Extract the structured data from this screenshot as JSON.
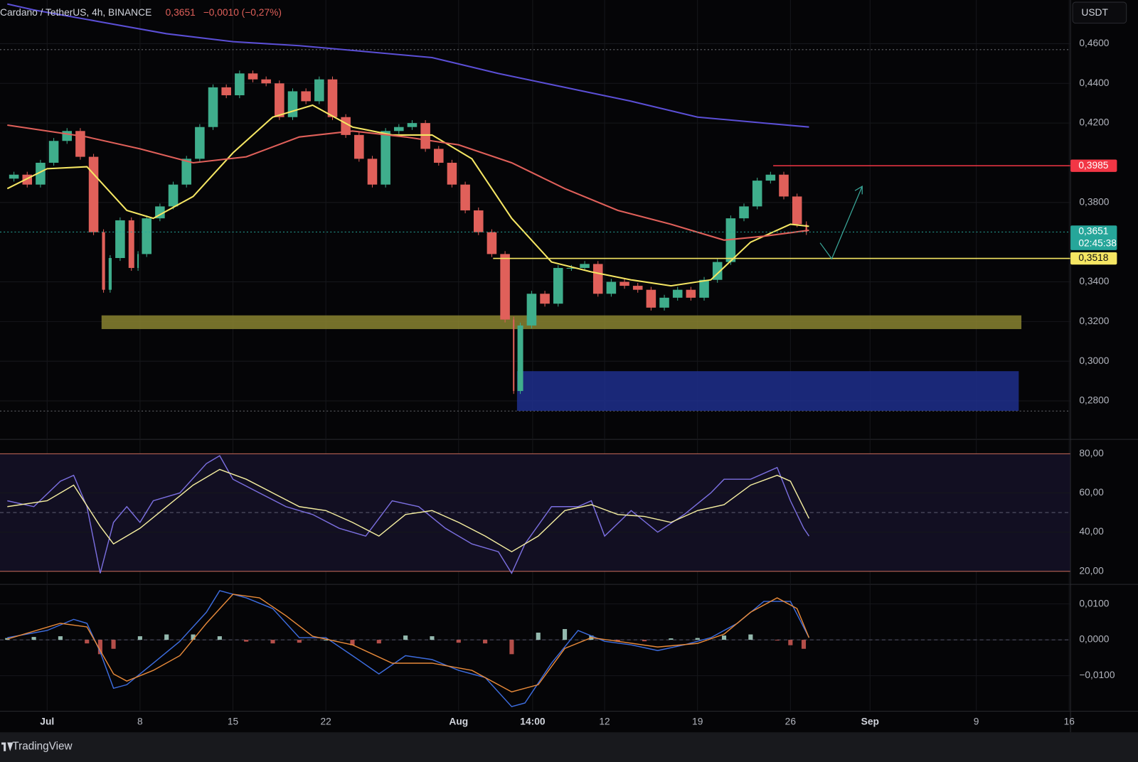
{
  "header": {
    "symbol": "Cardano / TetherUS, 4h, BINANCE",
    "price": "0,3651",
    "change": "−0,0010 (−0,27%)"
  },
  "currency_button": "USDT",
  "brand": "TradingView",
  "chart_data": [
    {
      "type": "candlestick",
      "xlim": [
        -2.55,
        78.1
      ],
      "xticks": [
        {
          "value": 1,
          "label": "Jul"
        },
        8,
        15,
        22,
        {
          "value": 32,
          "label": "Aug"
        },
        {
          "value": 37.58,
          "label": "14:00"
        },
        {
          "value": 43,
          "label": "12"
        },
        {
          "value": 50,
          "label": "19"
        },
        {
          "value": 57,
          "label": "26"
        },
        {
          "value": 63,
          "label": "Sep"
        },
        {
          "value": 71,
          "label": "9"
        },
        {
          "value": 78,
          "label": "16"
        }
      ],
      "ylim": [
        0.261,
        0.482
      ],
      "yticks": [
        {
          "value": 0.28,
          "label": "0,2800"
        },
        {
          "value": 0.3,
          "label": "0,3000"
        },
        {
          "value": 0.32,
          "label": "0,3200"
        },
        {
          "value": 0.34,
          "label": "0,3400"
        },
        {
          "value": 0.38,
          "label": "0,3800"
        },
        {
          "value": 0.42,
          "label": "0,4200"
        },
        {
          "value": 0.44,
          "label": "0,4400"
        },
        {
          "value": 0.46,
          "label": "0,4600"
        }
      ],
      "up_color": "#3fae8c",
      "down_color": "#e0605a",
      "close": {
        "x": [
          -2,
          -1,
          0,
          1,
          2,
          3,
          4,
          5,
          5.5,
          6,
          7,
          7.7,
          8,
          9,
          10,
          11,
          12,
          13,
          14,
          15,
          16,
          17,
          18,
          19,
          20,
          21,
          22,
          23,
          24,
          25,
          26,
          27,
          28,
          29,
          30,
          31,
          32,
          33,
          34,
          35,
          36,
          36.3,
          37,
          38,
          39,
          40,
          41,
          42,
          43,
          44,
          45,
          46,
          47,
          48,
          49,
          50,
          51,
          52,
          53,
          54,
          55,
          56,
          57,
          58,
          58.4
        ],
        "values": [
          0.392,
          0.394,
          0.389,
          0.4,
          0.411,
          0.416,
          0.403,
          0.365,
          0.336,
          0.352,
          0.371,
          0.347,
          0.354,
          0.372,
          0.378,
          0.389,
          0.402,
          0.418,
          0.438,
          0.434,
          0.445,
          0.442,
          0.44,
          0.423,
          0.436,
          0.431,
          0.442,
          0.423,
          0.414,
          0.402,
          0.389,
          0.416,
          0.418,
          0.42,
          0.407,
          0.4,
          0.389,
          0.376,
          0.365,
          0.354,
          0.321,
          0.285,
          0.318,
          0.334,
          0.329,
          0.347,
          0.347,
          0.349,
          0.334,
          0.34,
          0.338,
          0.336,
          0.327,
          0.332,
          0.336,
          0.332,
          0.341,
          0.35,
          0.372,
          0.378,
          0.391,
          0.394,
          0.383,
          0.369,
          0.3651
        ]
      },
      "series": [
        {
          "color": "#f5e663",
          "x": [
            -2,
            1,
            4,
            7,
            9,
            12,
            15,
            18,
            21,
            24,
            27,
            30,
            33,
            36,
            39,
            42,
            45,
            48,
            51,
            54,
            57,
            58.4
          ],
          "values": [
            0.387,
            0.397,
            0.398,
            0.376,
            0.372,
            0.383,
            0.405,
            0.423,
            0.429,
            0.418,
            0.414,
            0.414,
            0.402,
            0.372,
            0.35,
            0.345,
            0.341,
            0.338,
            0.341,
            0.36,
            0.369,
            0.368
          ]
        },
        {
          "color": "#e0605a",
          "x": [
            -2,
            4,
            8,
            12,
            16,
            20,
            24,
            28,
            32,
            36,
            40,
            44,
            48,
            52,
            55,
            58.4
          ],
          "values": [
            0.419,
            0.413,
            0.407,
            0.4,
            0.403,
            0.413,
            0.416,
            0.413,
            0.409,
            0.4,
            0.387,
            0.376,
            0.369,
            0.361,
            0.363,
            0.366
          ]
        },
        {
          "color": "#5b4fd6",
          "x": [
            -2,
            0,
            5,
            10,
            15,
            20,
            25,
            30,
            35,
            40,
            45,
            50,
            55,
            58.4
          ],
          "values": [
            0.48,
            0.477,
            0.471,
            0.465,
            0.461,
            0.459,
            0.456,
            0.453,
            0.445,
            0.438,
            0.431,
            0.423,
            0.42,
            0.418
          ]
        }
      ],
      "zones": [
        {
          "y": [
            0.3162,
            0.3231
          ],
          "x": [
            5.1,
            74.4
          ],
          "color": "#8a8430"
        },
        {
          "y": [
            0.275,
            0.295
          ],
          "x": [
            36.4,
            74.2
          ],
          "color": "#1e2f8c"
        }
      ],
      "dotted_levels": [
        0.457,
        0.2749
      ],
      "price_lines": [
        {
          "value": 0.3985,
          "label": "0,3985",
          "color": "#f23645",
          "from": 55.7
        },
        {
          "value": 0.3651,
          "label": "0,3651",
          "countdown": "02:45:38",
          "color": "#26a69a",
          "style": "dotted"
        },
        {
          "value": 0.3518,
          "label": "0,3518",
          "color": "#f5e663",
          "from": 34.6
        }
      ]
    },
    {
      "type": "line",
      "ylim": [
        13.7,
        87
      ],
      "yticks": [
        {
          "value": 20,
          "label": "20,00"
        },
        {
          "value": 40,
          "label": "40,00"
        },
        {
          "value": 60,
          "label": "60,00"
        },
        {
          "value": 80,
          "label": "80,00"
        }
      ],
      "band": [
        20,
        80
      ],
      "midline": 50,
      "series": [
        {
          "color": "#7b6fe0",
          "x": [
            -2,
            0,
            2,
            3,
            4,
            5,
            6,
            7,
            8,
            9,
            11,
            13,
            14,
            15,
            17,
            19,
            21,
            23,
            25,
            27,
            29,
            31,
            33,
            35,
            36,
            37,
            39,
            41,
            42,
            43,
            45,
            47,
            49,
            51,
            52,
            54,
            56,
            57,
            58,
            58.4
          ],
          "values": [
            56,
            53,
            66,
            69,
            53,
            19,
            45,
            53,
            45,
            56,
            60,
            75,
            79,
            67,
            60,
            53,
            49,
            42,
            38,
            56,
            53,
            42,
            34,
            30,
            19,
            34,
            53,
            53,
            56,
            38,
            51,
            40,
            49,
            60,
            67,
            67,
            73,
            56,
            42,
            38
          ]
        },
        {
          "color": "#f5eea0",
          "x": [
            -2,
            1,
            3,
            5,
            6,
            8,
            10,
            12,
            14,
            16,
            18,
            20,
            22,
            24,
            26,
            28,
            30,
            32,
            34,
            36,
            38,
            40,
            42,
            44,
            46,
            48,
            50,
            52,
            54,
            56,
            57,
            58.4
          ],
          "values": [
            53,
            56,
            64,
            43,
            34,
            42,
            53,
            64,
            72,
            67,
            60,
            53,
            51,
            45,
            38,
            49,
            51,
            45,
            38,
            30,
            38,
            51,
            54,
            49,
            48,
            45,
            51,
            54,
            64,
            69,
            66,
            47
          ]
        }
      ]
    },
    {
      "type": "macd",
      "ylim": [
        -0.0197,
        0.01525
      ],
      "yticks": [
        {
          "value": -0.01,
          "label": "−0,0100"
        },
        {
          "value": 0,
          "label": "0,0000"
        },
        {
          "value": 0.01,
          "label": "0,0100"
        }
      ],
      "histogram": {
        "up_color": "#b8e6d8",
        "down_color": "#e0605a",
        "x": [
          -2,
          0,
          2,
          4,
          5,
          6,
          8,
          10,
          12,
          14,
          16,
          18,
          20,
          22,
          24,
          26,
          28,
          30,
          32,
          34,
          36,
          38,
          40,
          42,
          44,
          46,
          48,
          50,
          52,
          54,
          56,
          57,
          58
        ],
        "values": [
          0.0005,
          0.0008,
          0.001,
          -0.001,
          -0.004,
          -0.0025,
          0.001,
          0.0015,
          0.0015,
          0.001,
          -0.0005,
          -0.001,
          -0.0008,
          0,
          -0.0015,
          -0.001,
          0.0012,
          0.001,
          -0.0008,
          -0.001,
          -0.004,
          0.002,
          0.003,
          0.0012,
          -0.0005,
          -0.0004,
          0.0004,
          0.0005,
          0.0012,
          0.0015,
          -0.0002,
          -0.0015,
          -0.0025
        ]
      },
      "series": [
        {
          "color": "#3d6de0",
          "x": [
            -2,
            1,
            3,
            4,
            5,
            6,
            7,
            9,
            11,
            13,
            14,
            16,
            18,
            20,
            22,
            24,
            26,
            28,
            30,
            32,
            34,
            36,
            37,
            39,
            41,
            43,
            45,
            47,
            49,
            51,
            53,
            55,
            57,
            58.4
          ],
          "values": [
            0.0006,
            0.0026,
            0.0057,
            0.0046,
            -0.0034,
            -0.0135,
            -0.0125,
            -0.0065,
            -0.0004,
            0.0077,
            0.0137,
            0.0117,
            0.0087,
            0.0006,
            0.0006,
            -0.0044,
            -0.0095,
            -0.0044,
            -0.0055,
            -0.0085,
            -0.0105,
            -0.0186,
            -0.0176,
            -0.0065,
            0.0026,
            -0.0004,
            -0.0014,
            -0.003,
            -0.0014,
            0.0006,
            0.0046,
            0.0107,
            0.0107,
            0.0006
          ]
        },
        {
          "color": "#e88a3a",
          "x": [
            -2,
            2,
            4,
            6,
            7,
            9,
            11,
            13,
            15,
            17,
            19,
            21,
            24,
            27,
            30,
            33,
            36,
            38,
            40,
            42,
            44,
            47,
            50,
            52,
            54,
            56,
            57.5,
            58.4
          ],
          "values": [
            0.0002,
            0.0046,
            0.0036,
            -0.0095,
            -0.0115,
            -0.0085,
            -0.0044,
            0.0046,
            0.0127,
            0.0117,
            0.0067,
            0.001,
            -0.0014,
            -0.0065,
            -0.0065,
            -0.0085,
            -0.0145,
            -0.0125,
            -0.0024,
            0.0006,
            -0.0004,
            -0.002,
            -0.001,
            0.0016,
            0.0077,
            0.0117,
            0.0087,
            0.0006
          ]
        }
      ]
    }
  ]
}
